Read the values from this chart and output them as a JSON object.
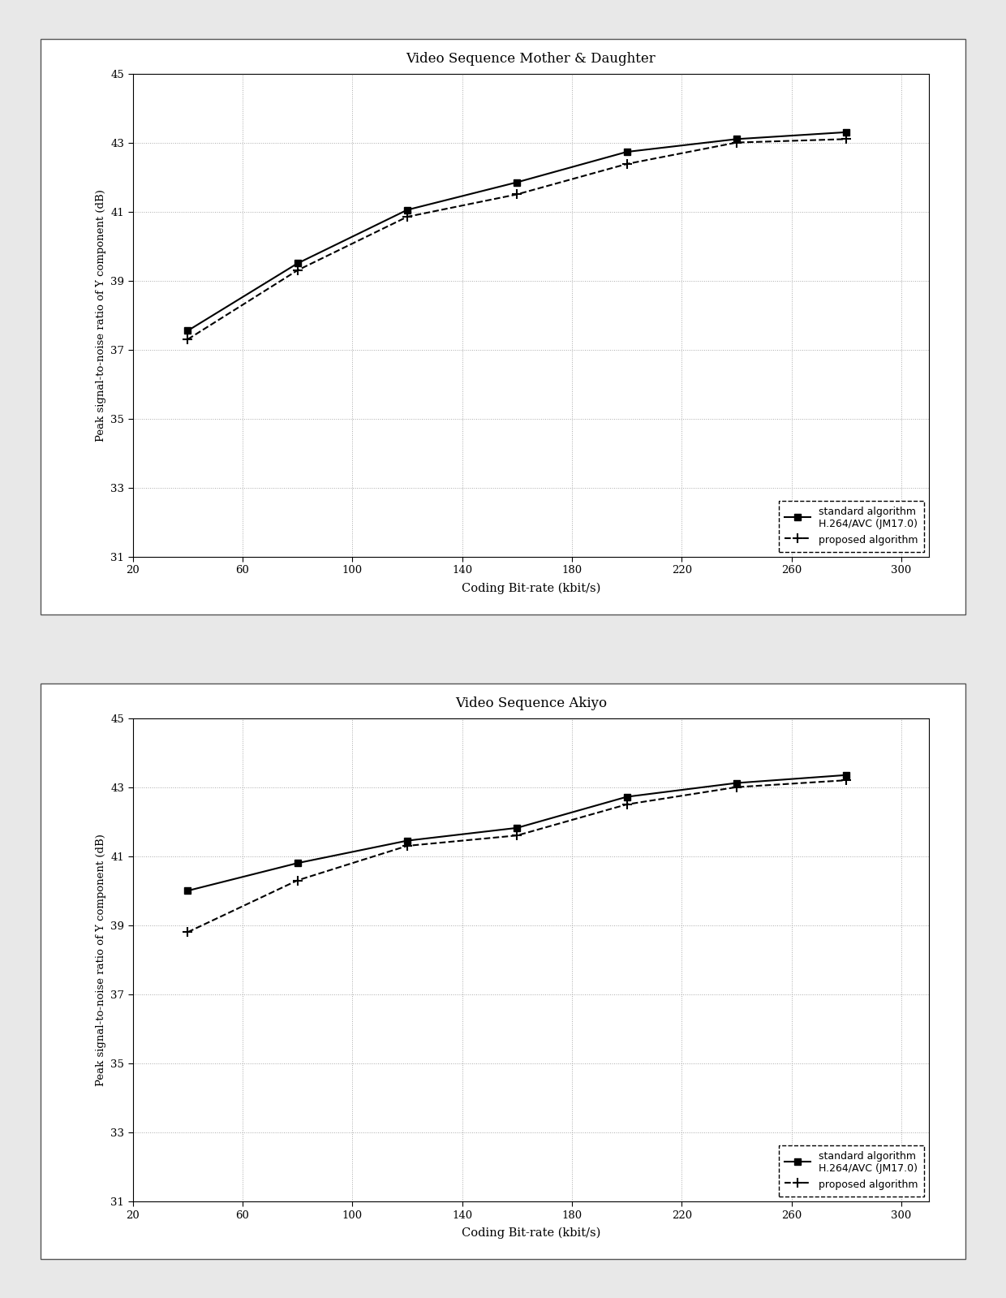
{
  "chart1": {
    "title": "Video Sequence Mother & Daughter",
    "standard_x": [
      40,
      80,
      120,
      160,
      200,
      240,
      280
    ],
    "standard_y": [
      37.55,
      39.5,
      41.05,
      41.85,
      42.73,
      43.1,
      43.3
    ],
    "proposed_x": [
      40,
      80,
      120,
      160,
      200,
      240,
      280
    ],
    "proposed_y": [
      37.3,
      39.3,
      40.85,
      41.5,
      42.38,
      43.0,
      43.1
    ]
  },
  "chart2": {
    "title": "Video Sequence Akiyo",
    "standard_x": [
      40,
      80,
      120,
      160,
      200,
      240,
      280
    ],
    "standard_y": [
      40.0,
      40.8,
      41.45,
      41.82,
      42.72,
      43.12,
      43.35
    ],
    "proposed_x": [
      40,
      80,
      120,
      160,
      200,
      240,
      280
    ],
    "proposed_y": [
      38.8,
      40.3,
      41.3,
      41.6,
      42.5,
      43.0,
      43.2
    ]
  },
  "xlabel": "Coding Bit-rate (kbit/s)",
  "ylabel": "Peak signal-to-noise ratio of Y component (dB)",
  "xlim": [
    20,
    310
  ],
  "ylim": [
    31,
    45
  ],
  "xticks": [
    20,
    60,
    100,
    140,
    180,
    220,
    260,
    300
  ],
  "yticks": [
    31,
    33,
    35,
    37,
    39,
    41,
    43,
    45
  ],
  "legend_standard": "standard algorithm\nH.264/AVC (JM17.0)",
  "legend_proposed": "proposed algorithm",
  "line_color": "#000000",
  "page_bg": "#e8e8e8",
  "panel_bg": "#ffffff",
  "grid_color": "#aaaaaa"
}
